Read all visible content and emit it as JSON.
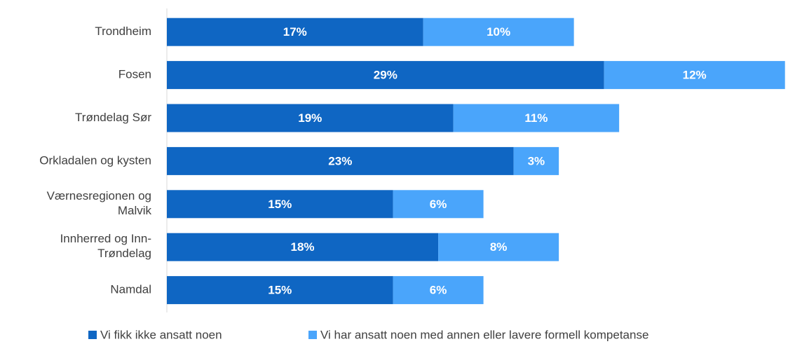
{
  "chart_data": {
    "type": "stacked-bar-horizontal",
    "categories": [
      "Trondheim",
      "Fosen",
      "Trøndelag Sør",
      "Orkladalen og kysten",
      "Værnesregionen og Malvik",
      "Innherred og Inn-Trøndelag",
      "Namdal"
    ],
    "series": [
      {
        "name": "Vi fikk ikke ansatt noen",
        "color": "#0f66c3",
        "values": [
          17,
          29,
          19,
          23,
          15,
          18,
          15
        ],
        "value_labels": [
          "17%",
          "29%",
          "19%",
          "23%",
          "15%",
          "18%",
          "15%"
        ]
      },
      {
        "name": "Vi har ansatt noen med annen eller lavere formell kompetanse",
        "color": "#4aa5fb",
        "values": [
          10,
          12,
          11,
          3,
          6,
          8,
          6
        ],
        "value_labels": [
          "10%",
          "12%",
          "11%",
          "3%",
          "6%",
          "8%",
          "6%"
        ]
      }
    ],
    "xlim": [
      0,
      41.2
    ],
    "legend": "bottom"
  }
}
